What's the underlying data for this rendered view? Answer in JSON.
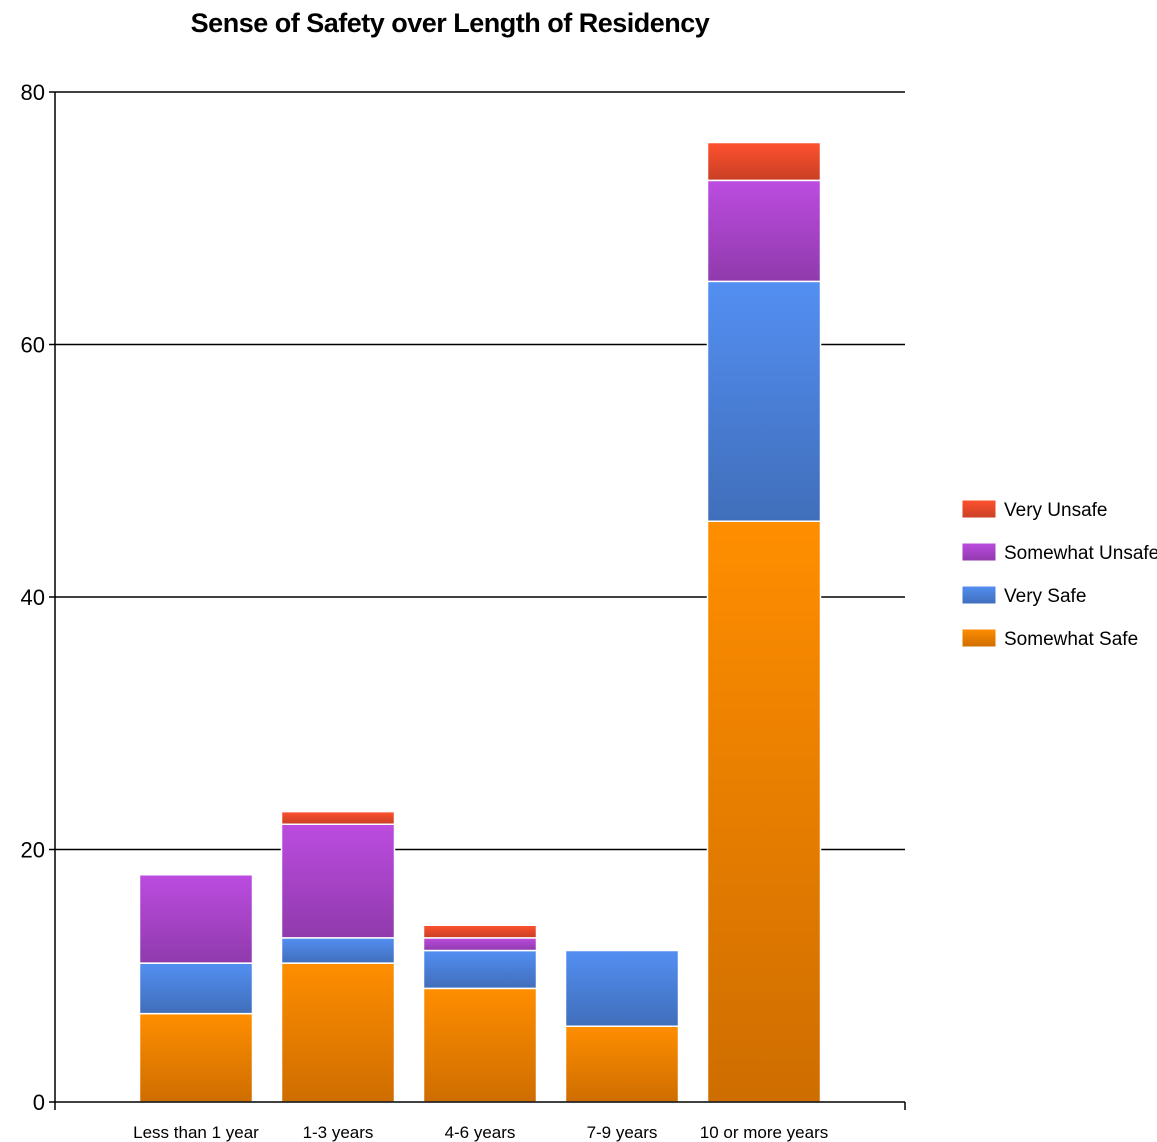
{
  "chart_data": {
    "type": "bar",
    "stacked": true,
    "title": "Sense of Safety over Length of Residency",
    "xlabel": "",
    "ylabel": "",
    "categories": [
      "Less than 1 year",
      "1-3 years",
      "4-6 years",
      "7-9 years",
      "10 or more years"
    ],
    "series": [
      {
        "name": "Somewhat Safe",
        "color": "#F07F00",
        "values": [
          7,
          11,
          9,
          6,
          46
        ]
      },
      {
        "name": "Very Safe",
        "color": "#4A80D8",
        "values": [
          4,
          2,
          3,
          6,
          19
        ]
      },
      {
        "name": "Somewhat Unsafe",
        "color": "#A844C8",
        "values": [
          7,
          9,
          1,
          0,
          8
        ]
      },
      {
        "name": "Very Unsafe",
        "color": "#E8492A",
        "values": [
          0,
          1,
          1,
          0,
          3
        ]
      }
    ],
    "ylim": [
      0,
      80
    ],
    "yticks": [
      0,
      20,
      40,
      60,
      80
    ],
    "grid": true,
    "legend_position": "right",
    "legend_order": [
      "Very Unsafe",
      "Somewhat Unsafe",
      "Very Safe",
      "Somewhat Safe"
    ]
  }
}
